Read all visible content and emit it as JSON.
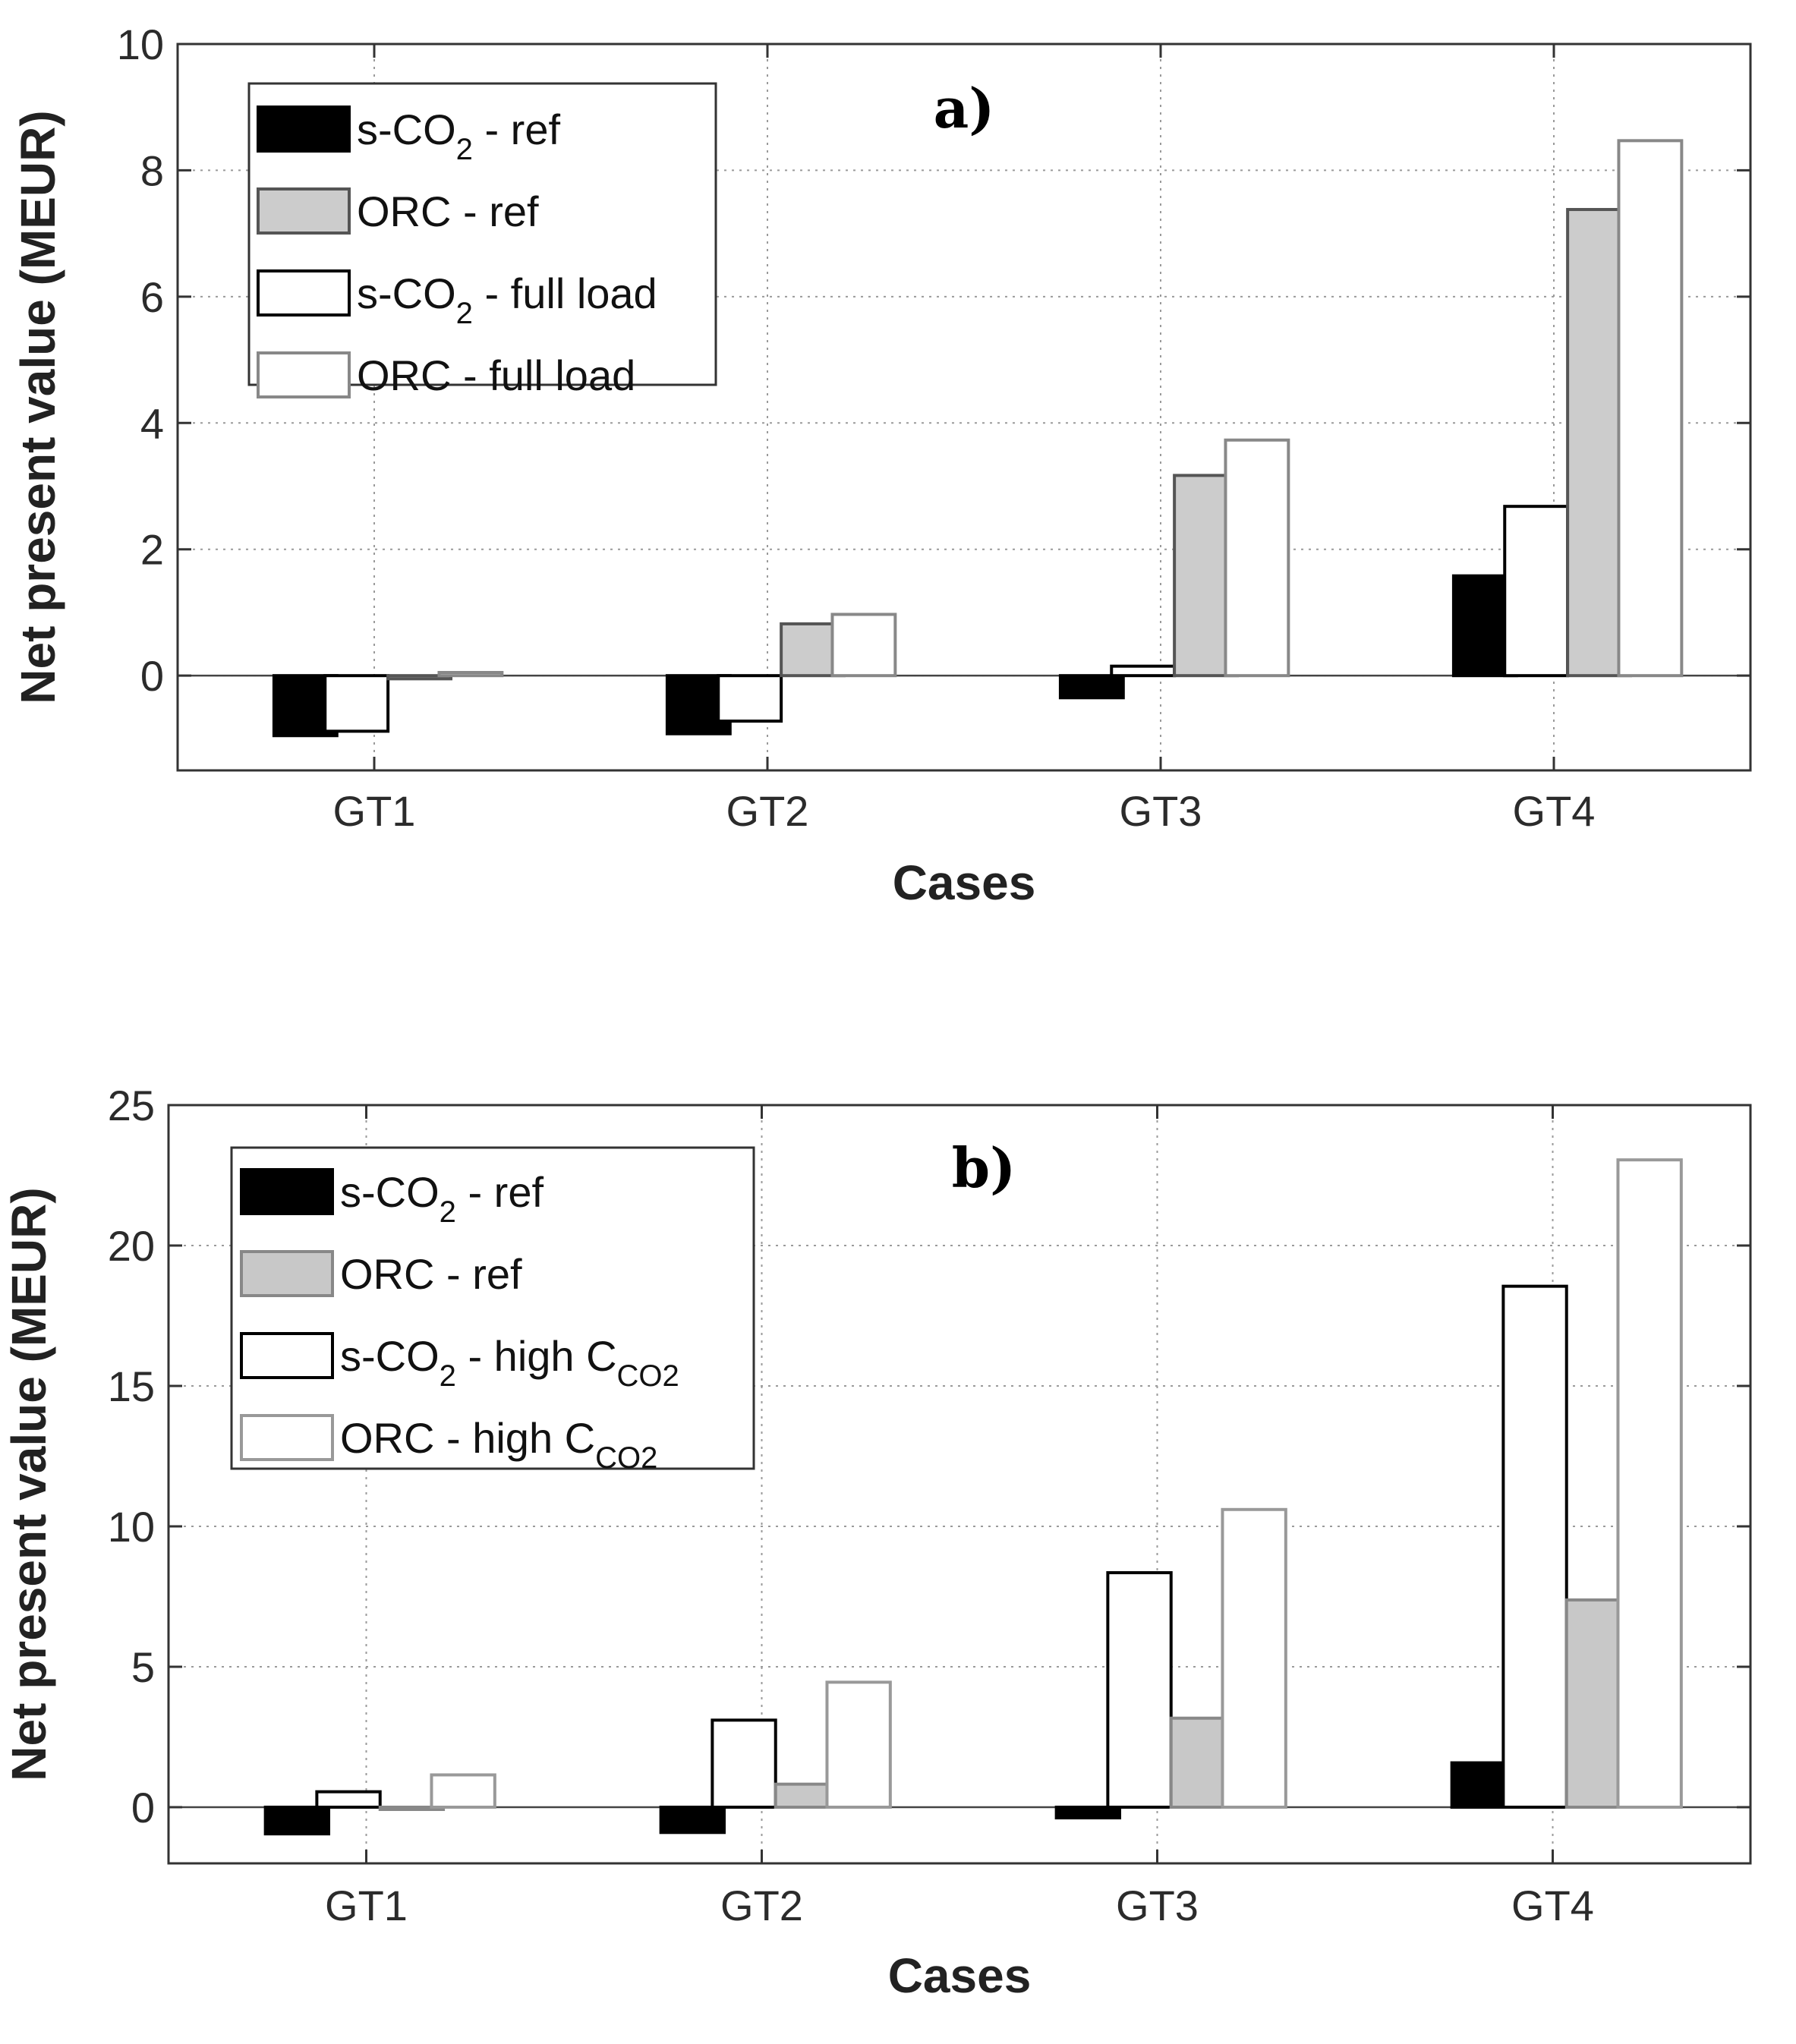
{
  "chart_data": [
    {
      "type": "bar",
      "title": "a)",
      "xlabel": "Cases",
      "ylabel": "Net present value (MEUR)",
      "categories": [
        "GT1",
        "GT2",
        "GT3",
        "GT4"
      ],
      "ylim": [
        -1.5,
        10
      ],
      "yticks": [
        "0",
        "2",
        "4",
        "6",
        "8",
        "10"
      ],
      "grid": true,
      "legend_position": "top-left",
      "series": [
        {
          "name": "s-CO2 - ref",
          "label_main": "s-CO",
          "label_sub": "2",
          "label_rest": " - ref",
          "color": "#000000",
          "stroke": "#000000",
          "values": [
            -0.95,
            -0.92,
            -0.35,
            1.58
          ]
        },
        {
          "name": "s-CO2 - full load",
          "label_main": "s-CO",
          "label_sub": "2",
          "label_rest": " - full load",
          "color": "#ffffff",
          "stroke": "#000000",
          "values": [
            -0.88,
            -0.72,
            0.15,
            2.68
          ]
        },
        {
          "name": "ORC - ref",
          "label_main": "ORC - ref",
          "label_sub": "",
          "label_rest": "",
          "color": "#cccccc",
          "stroke": "#555555",
          "values": [
            -0.05,
            0.82,
            3.17,
            7.38
          ]
        },
        {
          "name": "ORC - full load",
          "label_main": "ORC - full load",
          "label_sub": "",
          "label_rest": "",
          "color": "#ffffff",
          "stroke": "#888888",
          "values": [
            0.05,
            0.97,
            3.73,
            8.47
          ]
        }
      ],
      "legend_order": [
        0,
        2,
        1,
        3
      ]
    },
    {
      "type": "bar",
      "title": "b)",
      "xlabel": "Cases",
      "ylabel": "Net present value (MEUR)",
      "categories": [
        "GT1",
        "GT2",
        "GT3",
        "GT4"
      ],
      "ylim": [
        -2,
        25
      ],
      "yticks": [
        "0",
        "5",
        "10",
        "15",
        "20",
        "25"
      ],
      "grid": true,
      "legend_position": "top-left",
      "series": [
        {
          "name": "s-CO2 - ref",
          "label_main": "s-CO",
          "label_sub": "2",
          "label_rest": " - ref",
          "color": "#000000",
          "stroke": "#000000",
          "values": [
            -0.95,
            -0.9,
            -0.38,
            1.58
          ]
        },
        {
          "name": "s-CO2 - high CCO2",
          "label_main": "s-CO",
          "label_sub": "2",
          "label_rest": " - high C",
          "label_sub2": "CO2",
          "color": "#ffffff",
          "stroke": "#000000",
          "values": [
            0.55,
            3.1,
            8.35,
            18.55
          ]
        },
        {
          "name": "ORC - ref",
          "label_main": "ORC - ref",
          "label_sub": "",
          "label_rest": "",
          "color": "#c8c8c8",
          "stroke": "#888888",
          "values": [
            -0.05,
            0.82,
            3.17,
            7.38
          ]
        },
        {
          "name": "ORC - high CCO2",
          "label_main": "ORC - high C",
          "label_sub": "CO2",
          "label_rest": "",
          "color": "#ffffff",
          "stroke": "#999999",
          "values": [
            1.15,
            4.45,
            10.6,
            23.05
          ]
        }
      ],
      "legend_order": [
        0,
        2,
        1,
        3
      ]
    }
  ]
}
